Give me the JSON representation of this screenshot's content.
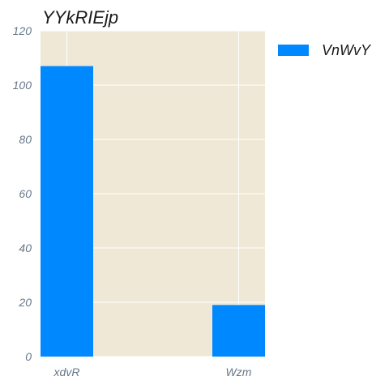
{
  "chart_data": {
    "type": "bar",
    "title": "YYkRIEjp",
    "categories": [
      "xdvR",
      "Wzm"
    ],
    "series": [
      {
        "name": "VnWvY",
        "values": [
          107,
          19
        ],
        "color": "#0088ff"
      }
    ],
    "ylim": [
      0,
      120
    ],
    "yticks": [
      0,
      20,
      40,
      60,
      80,
      100,
      120
    ],
    "xlabel": "",
    "ylabel": "",
    "grid": true,
    "legend_position": "right",
    "plot_background": "#efe8d6",
    "grid_color": "#ffffff"
  }
}
